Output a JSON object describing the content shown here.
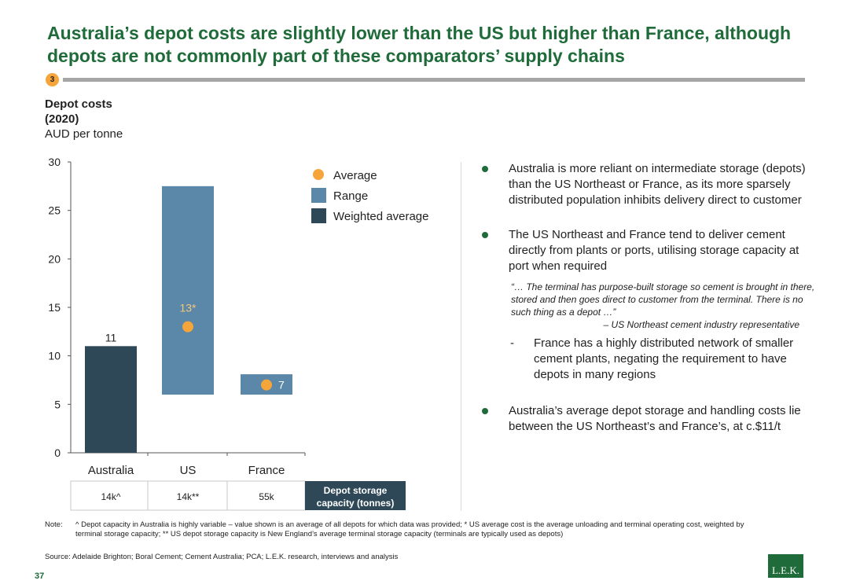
{
  "title": "Australia’s depot costs are slightly lower than the US but higher than France, although depots are not commonly part of these comparators’ supply chains",
  "step_badge": "3",
  "chart_heading": {
    "line1": "Depot costs",
    "line2": "(2020)",
    "line3": "AUD per tonne"
  },
  "chart_data": {
    "type": "bar",
    "categories": [
      "Australia",
      "US",
      "France"
    ],
    "ylim": [
      0,
      30
    ],
    "yticks": [
      0,
      5,
      10,
      15,
      20,
      25,
      30
    ],
    "series": [
      {
        "name": "Weighted average",
        "kind": "bar",
        "color": "#2f4858",
        "values": [
          11,
          null,
          null
        ]
      },
      {
        "name": "Range",
        "kind": "floating-bar",
        "color": "#5b87a8",
        "values": [
          null,
          [
            6,
            27.5
          ],
          [
            6,
            8.1
          ]
        ]
      },
      {
        "name": "Average",
        "kind": "point",
        "color": "#f5a53a",
        "values": [
          null,
          13,
          7
        ]
      }
    ],
    "data_labels": [
      "11",
      "13*",
      "7"
    ],
    "legend_position": "top-right"
  },
  "capacity_table": {
    "values": [
      "14k^",
      "14k**",
      "55k"
    ],
    "label_line1": "Depot storage",
    "label_line2": "capacity (tonnes)"
  },
  "bullets": [
    {
      "text": "Australia is more reliant on intermediate storage (depots) than the US Northeast or France, as its more sparsely distributed population inhibits delivery direct to customer"
    },
    {
      "text": "The US Northeast and France tend to deliver cement directly from plants or ports, utilising storage capacity at port when required"
    },
    {
      "text": "Australia’s average depot storage and handling costs lie between the US Northeast’s and France’s, at c.$11/t"
    }
  ],
  "quote": {
    "text": "“… The terminal has purpose-built storage so cement is brought in there, stored and then goes direct to customer from the terminal. There is no such thing as a depot …”",
    "attribution": "– US Northeast cement industry representative"
  },
  "sub_bullet": {
    "dash": "-",
    "text": "France has a highly distributed network of smaller cement plants, negating the requirement to have depots in many regions"
  },
  "note_label": "Note:",
  "note": "^ Depot capacity in Australia is highly variable – value shown is an average of all depots for which data was provided; * US average cost is the average unloading and terminal operating cost, weighted by terminal storage capacity; ** US depot storage capacity is New England’s average terminal storage capacity (terminals are typically used as depots)",
  "source": "Source: Adelaide Brighton; Boral Cement; Cement Australia; PCA; L.E.K. research, interviews and analysis",
  "page_number": "37",
  "logo_text": "L.E.K."
}
